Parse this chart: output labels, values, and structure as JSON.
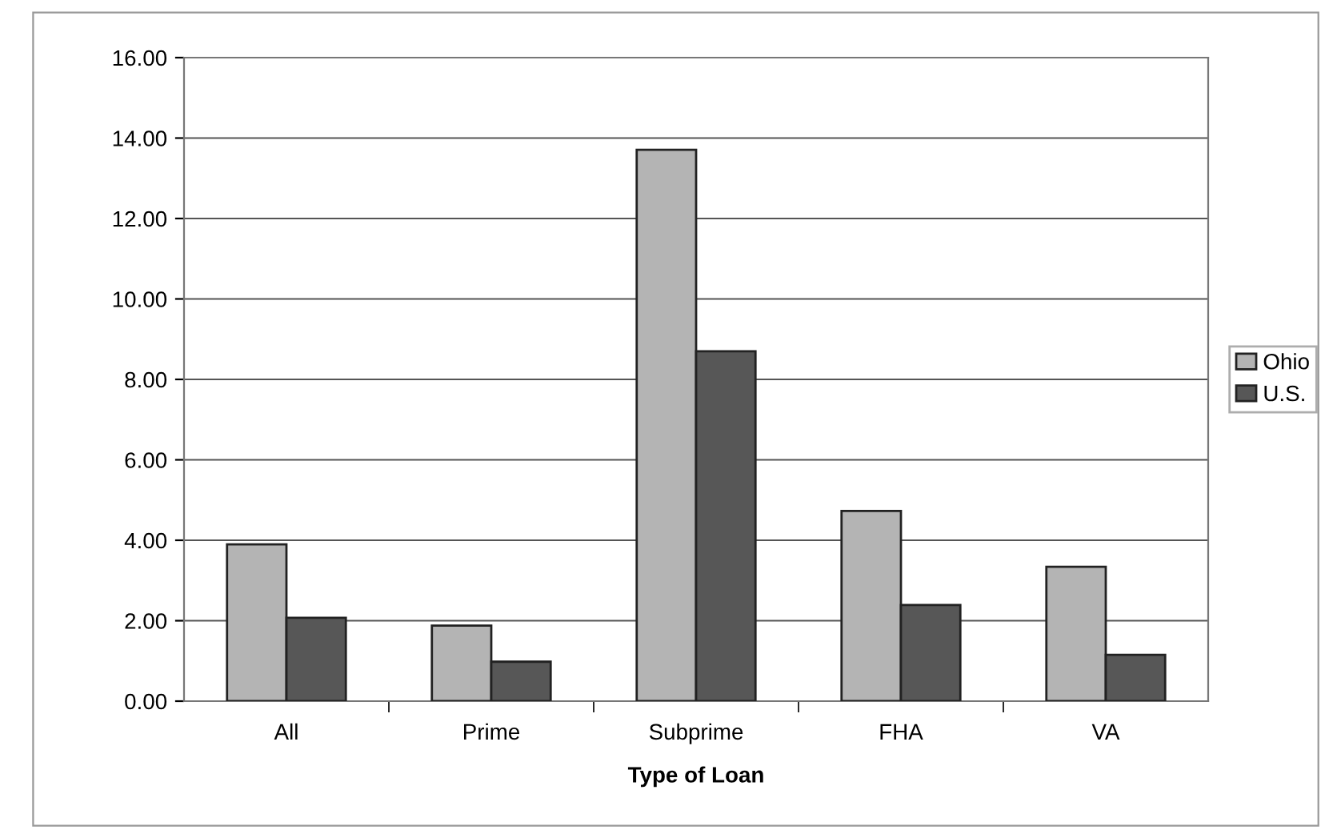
{
  "chart_data": {
    "type": "bar",
    "xlabel": "Type of Loan",
    "categories": [
      "All",
      "Prime",
      "Subprime",
      "FHA",
      "VA"
    ],
    "series": [
      {
        "name": "Ohio",
        "color": "#b4b4b4",
        "values": [
          3.9,
          1.88,
          13.71,
          4.73,
          3.34
        ]
      },
      {
        "name": "U.S.",
        "color": "#575757",
        "values": [
          2.07,
          0.98,
          8.7,
          2.39,
          1.15
        ]
      }
    ],
    "ylim": [
      0,
      16
    ],
    "yticks": [
      {
        "value": 0,
        "label": "0.00"
      },
      {
        "value": 2,
        "label": "2.00"
      },
      {
        "value": 4,
        "label": "4.00"
      },
      {
        "value": 6,
        "label": "6.00"
      },
      {
        "value": 8,
        "label": "8.00"
      },
      {
        "value": 10,
        "label": "10.00"
      },
      {
        "value": 12,
        "label": "12.00"
      },
      {
        "value": 14,
        "label": "14.00"
      },
      {
        "value": 16,
        "label": "16.00"
      }
    ],
    "grid": "y",
    "legend": "right"
  }
}
